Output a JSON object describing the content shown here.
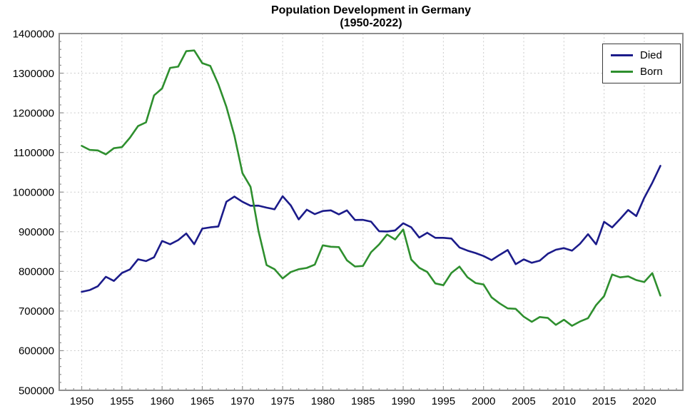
{
  "chart_data": {
    "type": "line",
    "title": "Population Development in Germany",
    "subtitle": "(1950-2022)",
    "xlabel": "",
    "ylabel": "",
    "grid": true,
    "legend_position": "top-right",
    "xlim": [
      1947.2,
      2024.8
    ],
    "ylim": [
      500000,
      1400000
    ],
    "xticks": [
      1950,
      1955,
      1960,
      1965,
      1970,
      1975,
      1980,
      1985,
      1990,
      1995,
      2000,
      2005,
      2010,
      2015,
      2020
    ],
    "yticks": [
      500000,
      600000,
      700000,
      800000,
      900000,
      1000000,
      1100000,
      1200000,
      1300000,
      1400000
    ],
    "x": [
      1950,
      1951,
      1952,
      1953,
      1954,
      1955,
      1956,
      1957,
      1958,
      1959,
      1960,
      1961,
      1962,
      1963,
      1964,
      1965,
      1966,
      1967,
      1968,
      1969,
      1970,
      1971,
      1972,
      1973,
      1974,
      1975,
      1976,
      1977,
      1978,
      1979,
      1980,
      1981,
      1982,
      1983,
      1984,
      1985,
      1986,
      1987,
      1988,
      1989,
      1990,
      1991,
      1992,
      1993,
      1994,
      1995,
      1996,
      1997,
      1998,
      1999,
      2000,
      2001,
      2002,
      2003,
      2004,
      2005,
      2006,
      2007,
      2008,
      2009,
      2010,
      2011,
      2012,
      2013,
      2014,
      2015,
      2016,
      2017,
      2018,
      2019,
      2020,
      2021,
      2022
    ],
    "series": [
      {
        "name": "Died",
        "color": "#1b1b8a",
        "values": [
          748329,
          752823,
          762424,
          786449,
          775956,
          795938,
          804884,
          830461,
          826029,
          835517,
          876721,
          868437,
          878905,
          895562,
          868629,
          907882,
          911061,
          913270,
          975664,
          988650,
          975505,
          965623,
          965795,
          960805,
          956573,
          989649,
          966687,
          931155,
          955550,
          944474,
          952371,
          954028,
          943832,
          953939,
          929649,
          929942,
          925432,
          901291,
          900627,
          903441,
          921445,
          911245,
          885443,
          897270,
          884661,
          884588,
          882843,
          860389,
          852382,
          846330,
          838797,
          828541,
          841686,
          853946,
          818271,
          830227,
          821627,
          827155,
          844439,
          854544,
          858768,
          852328,
          869582,
          893825,
          868356,
          925200,
          910902,
          932263,
          954874,
          939520,
          985572,
          1023687,
          1066341
        ]
      },
      {
        "name": "Born",
        "color": "#2e8f2e",
        "values": [
          1116701,
          1106382,
          1105085,
          1095281,
          1110703,
          1113408,
          1137169,
          1166593,
          1175870,
          1243922,
          1261614,
          1313505,
          1316534,
          1355595,
          1357304,
          1325386,
          1318303,
          1272276,
          1214968,
          1142366,
          1047737,
          1013396,
          901657,
          815969,
          805500,
          782310,
          798334,
          805496,
          808619,
          817217,
          865789,
          862100,
          861275,
          827933,
          812292,
          813803,
          848232,
          867969,
          892993,
          880459,
          905675,
          830019,
          809114,
          798447,
          769603,
          765221,
          796013,
          812173,
          785034,
          770744,
          766999,
          734475,
          719250,
          706721,
          705622,
          685795,
          672724,
          684862,
          682514,
          665126,
          677947,
          662685,
          673544,
          682069,
          714927,
          737575,
          792141,
          784901,
          787523,
          778090,
          773144,
          795492,
          738819
        ]
      }
    ],
    "colors": {
      "grid": "#cbcbcb",
      "frame": "#8f8f8f",
      "tick": "#8f8f8f",
      "tick_label": "#000000",
      "background": "#ffffff"
    }
  }
}
